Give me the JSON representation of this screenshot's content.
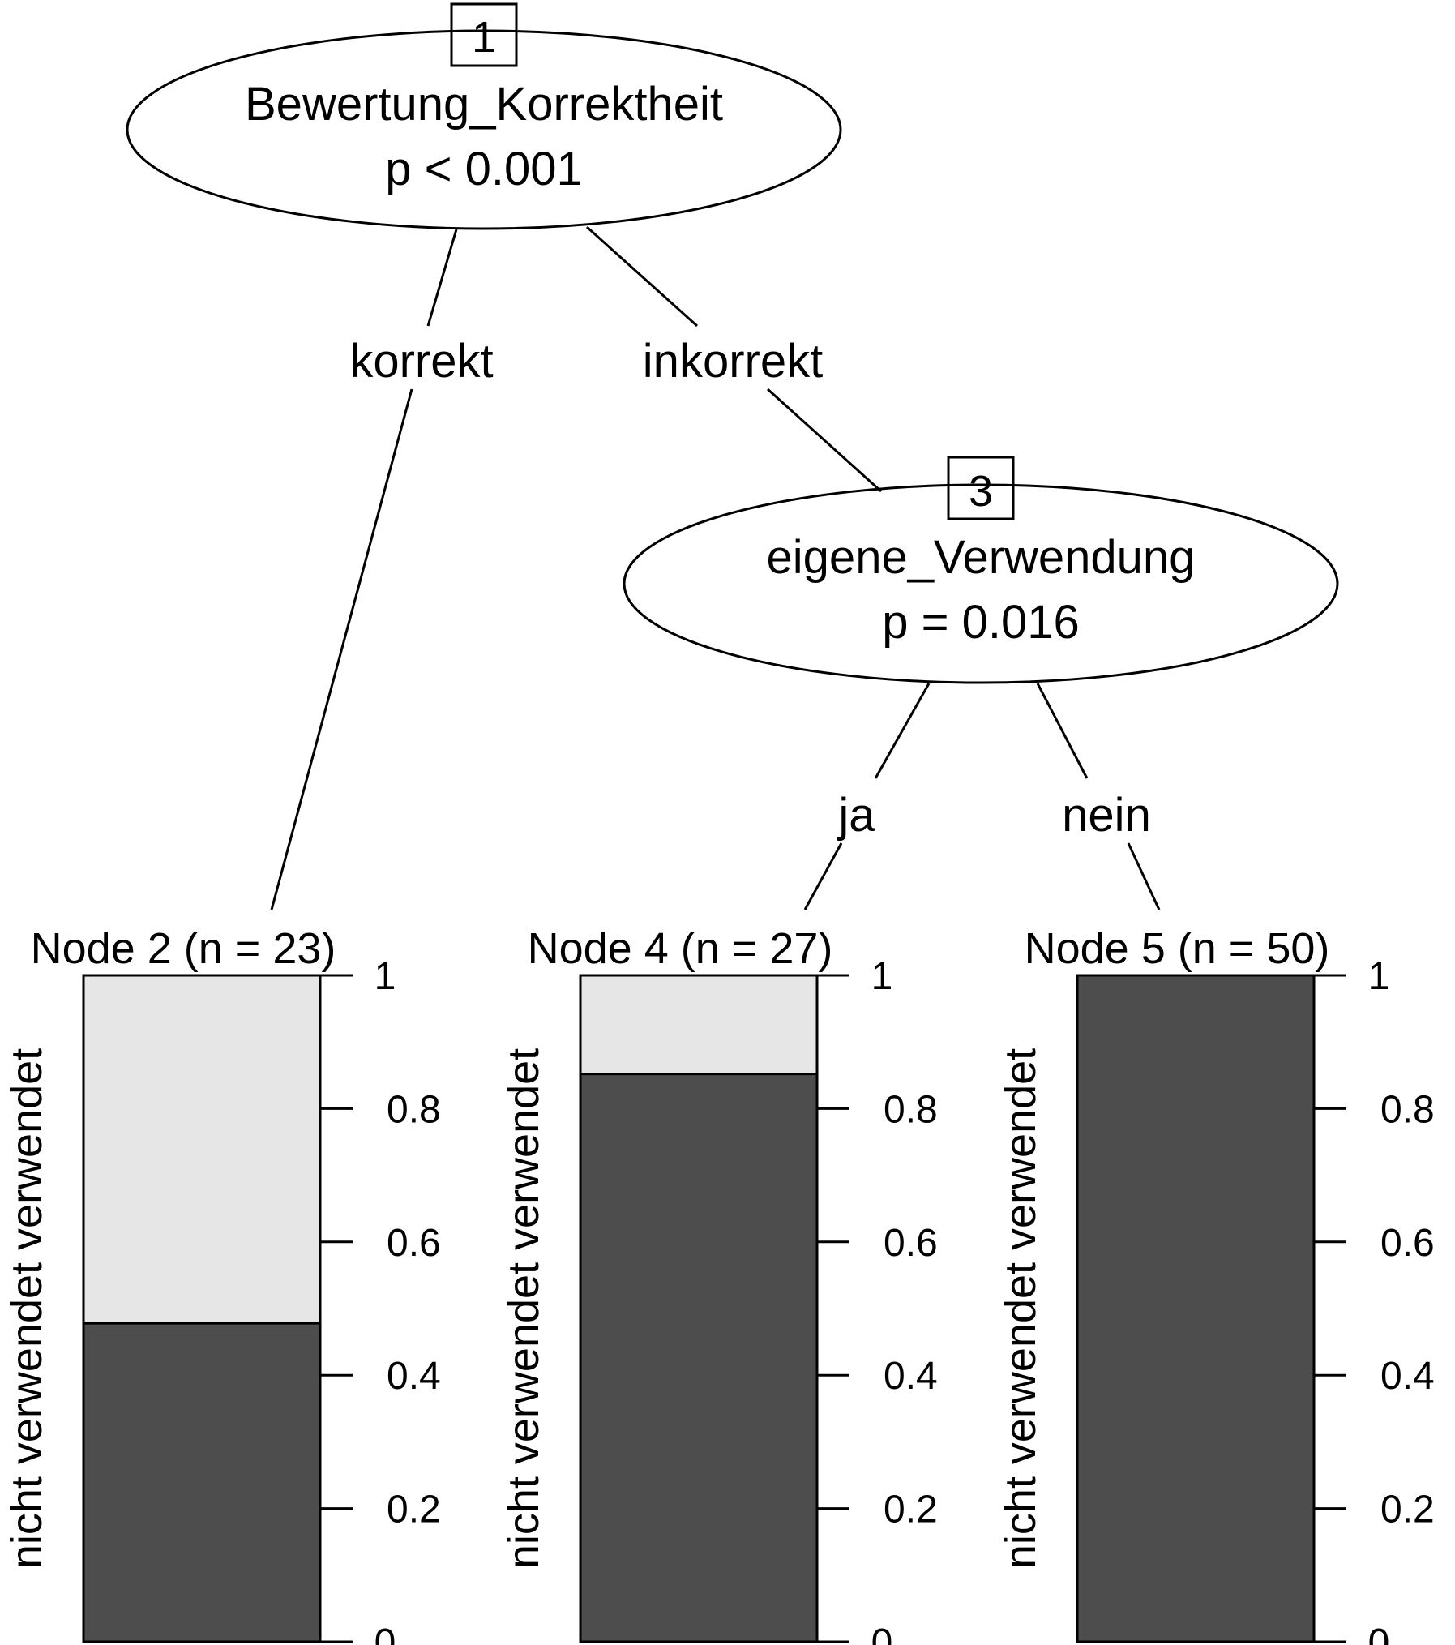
{
  "inner_nodes": [
    {
      "id": "1",
      "variable": "Bewertung_Korrektheit",
      "pvalue": "p < 0.001"
    },
    {
      "id": "3",
      "variable": "eigene_Verwendung",
      "pvalue": "p = 0.016"
    }
  ],
  "edge_labels": [
    "korrekt",
    "inkorrekt",
    "ja",
    "nein"
  ],
  "colors": {
    "verwendet": "#4d4d4d",
    "nicht_verwendet": "#e6e6e6",
    "line": "#000000"
  },
  "chart_data": {
    "type": "bar",
    "categories": [
      "Node 2 (n = 23)",
      "Node 4 (n = 27)",
      "Node 5 (n = 50)"
    ],
    "series": [
      {
        "name": "verwendet",
        "values": [
          0.478,
          0.852,
          1.0
        ]
      },
      {
        "name": "nicht verwendet",
        "values": [
          0.522,
          0.148,
          0.0
        ]
      }
    ],
    "ylabel": "nicht verwendet verwendet",
    "ylim": [
      0,
      1
    ],
    "yticks": [
      "0",
      "0.2",
      "0.4",
      "0.6",
      "0.8",
      "1"
    ],
    "stacked": true
  }
}
